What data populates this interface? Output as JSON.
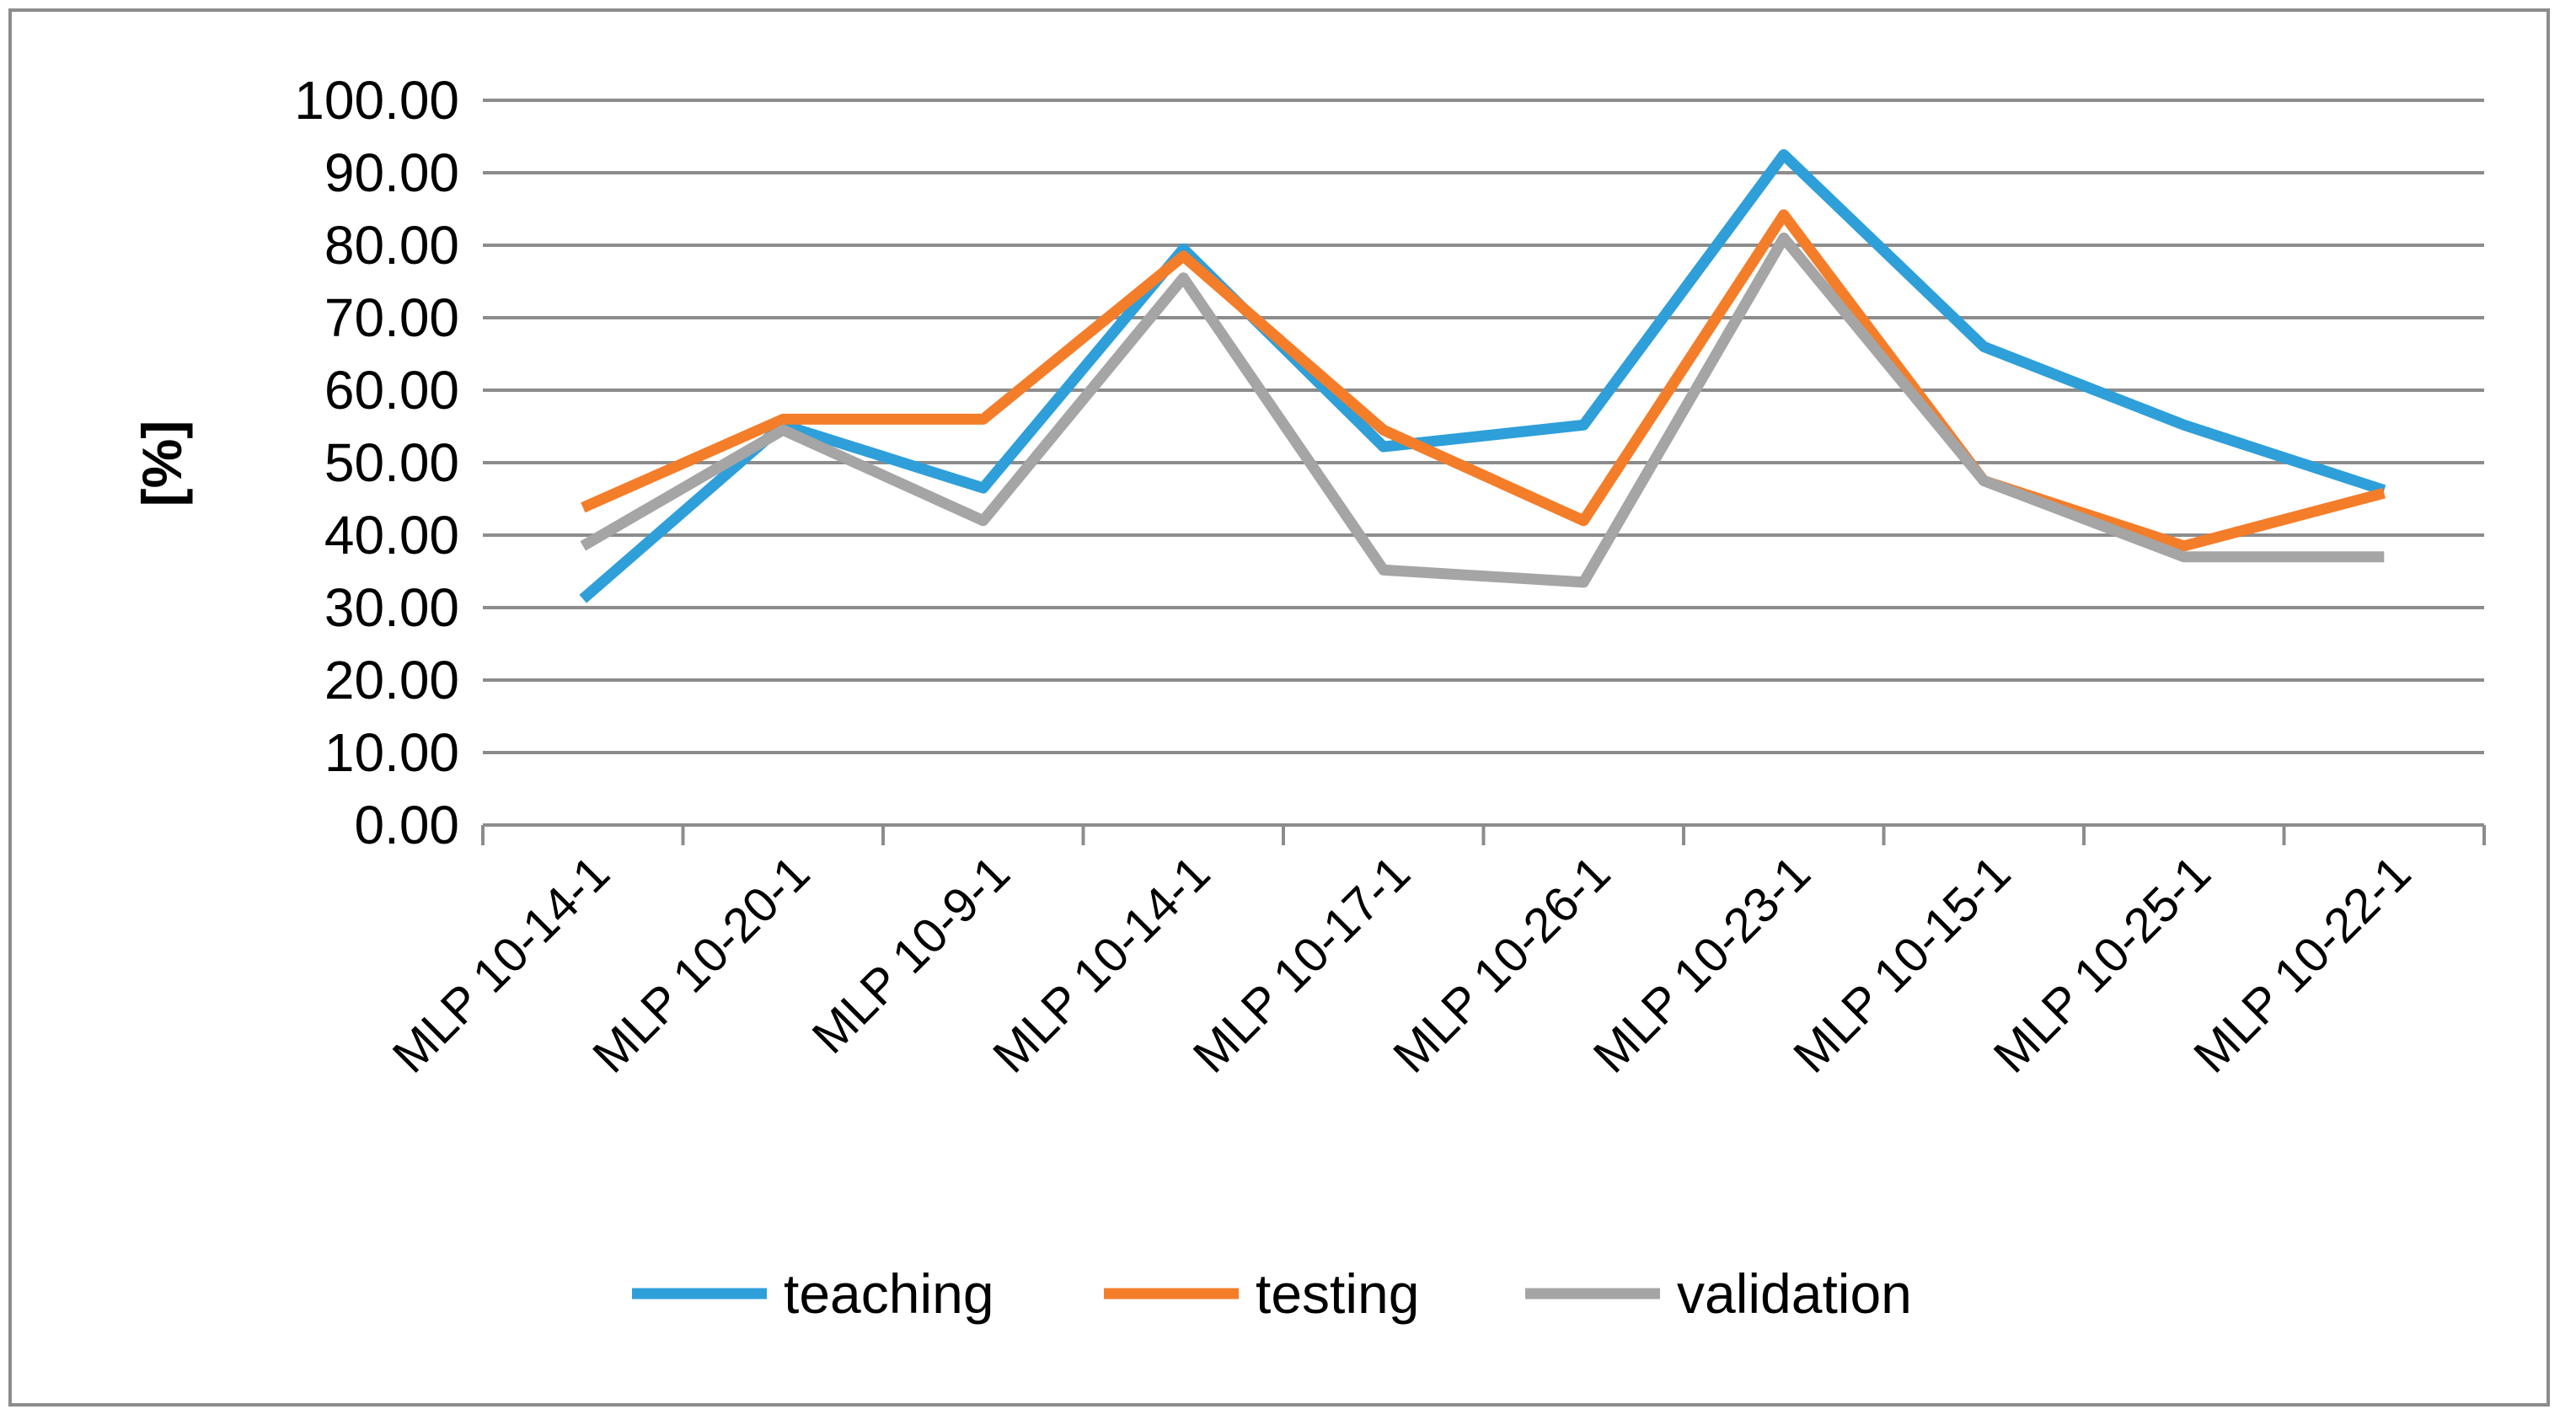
{
  "chart_data": {
    "type": "line",
    "title": "",
    "xlabel": "",
    "ylabel": "[%]",
    "ylim": [
      0,
      100
    ],
    "yticks": [
      "0.00",
      "10.00",
      "20.00",
      "30.00",
      "40.00",
      "50.00",
      "60.00",
      "70.00",
      "80.00",
      "90.00",
      "100.00"
    ],
    "grid": true,
    "legend_position": "bottom",
    "categories": [
      "MLP 10-14-1",
      "MLP 10-20-1",
      "MLP 10-9-1",
      "MLP 10-14-1",
      "MLP 10-17-1",
      "MLP 10-26-1",
      "MLP 10-23-1",
      "MLP 10-15-1",
      "MLP 10-25-1",
      "MLP 10-22-1"
    ],
    "series": [
      {
        "name": "teaching",
        "color": "#2e9fd9",
        "values": [
          31.2,
          55.2,
          46.5,
          79.5,
          52.2,
          55.2,
          92.5,
          66.0,
          55.2,
          46.2
        ]
      },
      {
        "name": "testing",
        "color": "#f47d2a",
        "values": [
          43.8,
          56.0,
          56.0,
          78.5,
          54.5,
          42.0,
          84.2,
          47.5,
          38.5,
          45.8
        ]
      },
      {
        "name": "validation",
        "color": "#a5a5a5",
        "values": [
          38.5,
          54.5,
          42.0,
          75.5,
          35.2,
          33.5,
          81.0,
          47.5,
          37.0,
          37.0
        ]
      }
    ]
  }
}
